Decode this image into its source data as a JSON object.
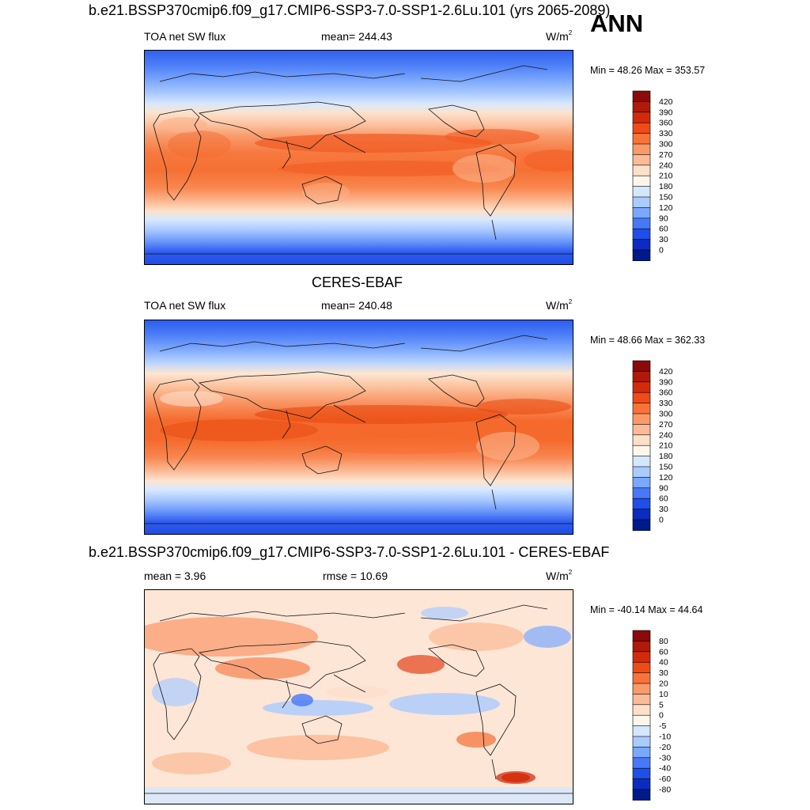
{
  "header": {
    "title": "b.e21.BSSP370cmip6.f09_g17.CMIP6-SSP3-7.0-SSP1-2.6Lu.101 (yrs 2065-2089)",
    "season": "ANN"
  },
  "panels": [
    {
      "title": "",
      "left_label": "TOA net SW flux",
      "center_label": "mean= 244.43",
      "units_base": "W/m",
      "units_exp": "2",
      "minmax": "Min =  48.26 Max = 353.57",
      "colorbar": {
        "labels": [
          "420",
          "390",
          "360",
          "330",
          "300",
          "270",
          "240",
          "210",
          "180",
          "150",
          "120",
          "90",
          "60",
          "30",
          "0"
        ],
        "colors": [
          "#8b0a0a",
          "#b01a08",
          "#d42a0c",
          "#f04a16",
          "#f8733a",
          "#fb9a68",
          "#fcbb96",
          "#fde0c8",
          "#fff6ea",
          "#d3e7ff",
          "#aacbff",
          "#7aa8ff",
          "#4778f7",
          "#1e4fe8",
          "#0a2cc0",
          "#001a8c"
        ]
      }
    },
    {
      "title": "CERES-EBAF",
      "left_label": "TOA net SW flux",
      "center_label": "mean= 240.48",
      "units_base": "W/m",
      "units_exp": "2",
      "minmax": "Min =  48.66 Max = 362.33",
      "colorbar": {
        "labels": [
          "420",
          "390",
          "360",
          "330",
          "300",
          "270",
          "240",
          "210",
          "180",
          "150",
          "120",
          "90",
          "60",
          "30",
          "0"
        ],
        "colors": [
          "#8b0a0a",
          "#b01a08",
          "#d42a0c",
          "#f04a16",
          "#f8733a",
          "#fb9a68",
          "#fcbb96",
          "#fde0c8",
          "#fff6ea",
          "#d3e7ff",
          "#aacbff",
          "#7aa8ff",
          "#4778f7",
          "#1e4fe8",
          "#0a2cc0",
          "#001a8c"
        ]
      }
    },
    {
      "title": "b.e21.BSSP370cmip6.f09_g17.CMIP6-SSP3-7.0-SSP1-2.6Lu.101 - CERES-EBAF",
      "left_label": "mean =   3.96",
      "center_label": "rmse =  10.69",
      "units_base": "W/m",
      "units_exp": "2",
      "minmax": "Min = -40.14 Max =  44.64",
      "colorbar": {
        "labels": [
          "80",
          "60",
          "40",
          "30",
          "20",
          "10",
          "5",
          "0",
          "-5",
          "-10",
          "-20",
          "-30",
          "-40",
          "-60",
          "-80"
        ],
        "colors": [
          "#8b0a0a",
          "#b01a08",
          "#d42a0c",
          "#f04a16",
          "#f8733a",
          "#fb9a68",
          "#fcbb96",
          "#fde0c8",
          "#fff6ea",
          "#d3e7ff",
          "#aacbff",
          "#7aa8ff",
          "#4778f7",
          "#1e4fe8",
          "#0a2cc0",
          "#001a8c"
        ]
      }
    }
  ]
}
